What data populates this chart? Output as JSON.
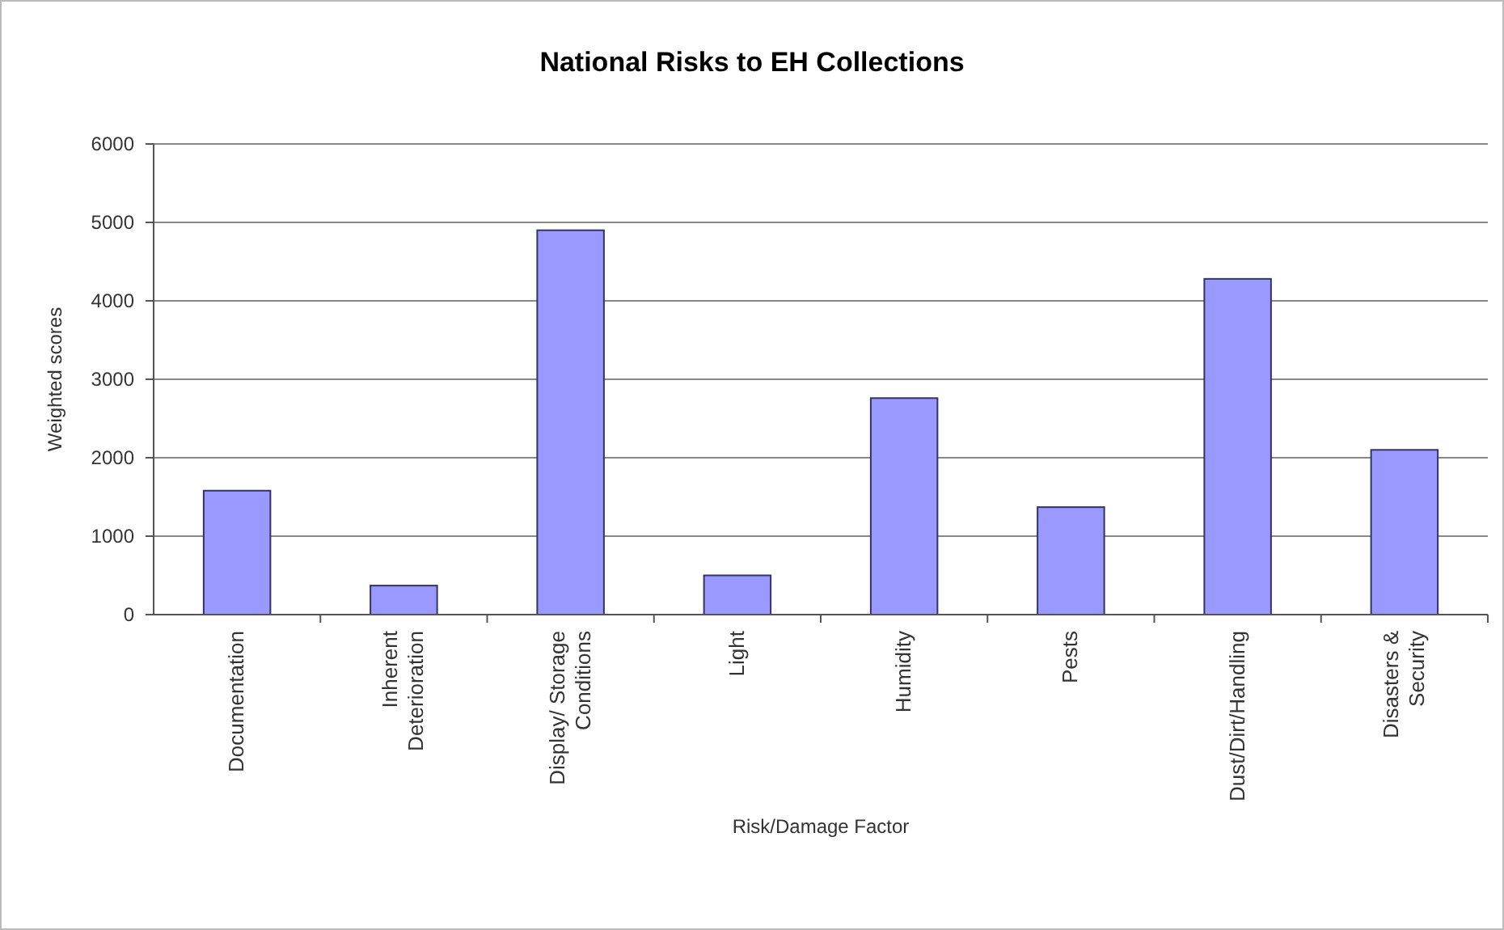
{
  "chart_data": {
    "type": "bar",
    "title": "National Risks to EH Collections",
    "xlabel": "Risk/Damage Factor",
    "ylabel": "Weighted scores",
    "categories": [
      "Documentation",
      "Inherent\nDeterioration",
      "Display/ Storage\nConditions",
      "Light",
      "Humidity",
      "Pests",
      "Dust/Dirt/Handling",
      "Disasters &\nSecurity"
    ],
    "values": [
      1580,
      370,
      4900,
      500,
      2760,
      1370,
      4280,
      2100
    ],
    "color": "#9999ff",
    "ylim": [
      0,
      6000
    ],
    "yticks": [
      0,
      1000,
      2000,
      3000,
      4000,
      5000,
      6000
    ],
    "grid": "y"
  }
}
